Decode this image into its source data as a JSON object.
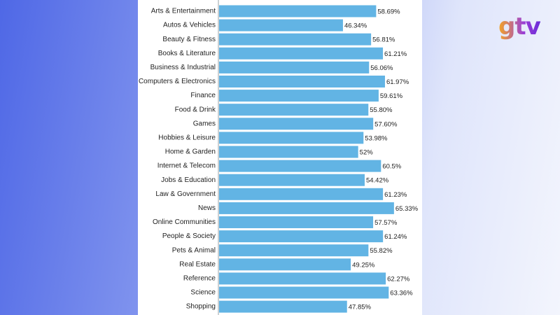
{
  "logo": "gtv",
  "chart_data": {
    "type": "hbar",
    "categories": [
      "Arts & Entertainment",
      "Autos & Vehicles",
      "Beauty & Fitness",
      "Books & Literature",
      "Business & Industrial",
      "Computers & Electronics",
      "Finance",
      "Food & Drink",
      "Games",
      "Hobbies & Leisure",
      "Home & Garden",
      "Internet & Telecom",
      "Jobs & Education",
      "Law & Government",
      "News",
      "Online Communities",
      "People & Society",
      "Pets & Animal",
      "Real Estate",
      "Reference",
      "Science",
      "Shopping"
    ],
    "values": [
      58.69,
      46.34,
      56.81,
      61.21,
      56.06,
      61.97,
      59.61,
      55.8,
      57.6,
      53.98,
      52,
      60.5,
      54.42,
      61.23,
      65.33,
      57.57,
      61.24,
      55.82,
      49.25,
      62.27,
      63.36,
      47.85
    ],
    "value_labels": [
      "58.69%",
      "46.34%",
      "56.81%",
      "61.21%",
      "56.06%",
      "61.97%",
      "59.61%",
      "55.80%",
      "57.60%",
      "53.98%",
      "52%",
      "60.5%",
      "54.42%",
      "61.23%",
      "65.33%",
      "57.57%",
      "61.24%",
      "55.82%",
      "49.25%",
      "62.27%",
      "63.36%",
      "47.85%"
    ],
    "color": "#62b4e4",
    "xlim": [
      0,
      75
    ]
  }
}
